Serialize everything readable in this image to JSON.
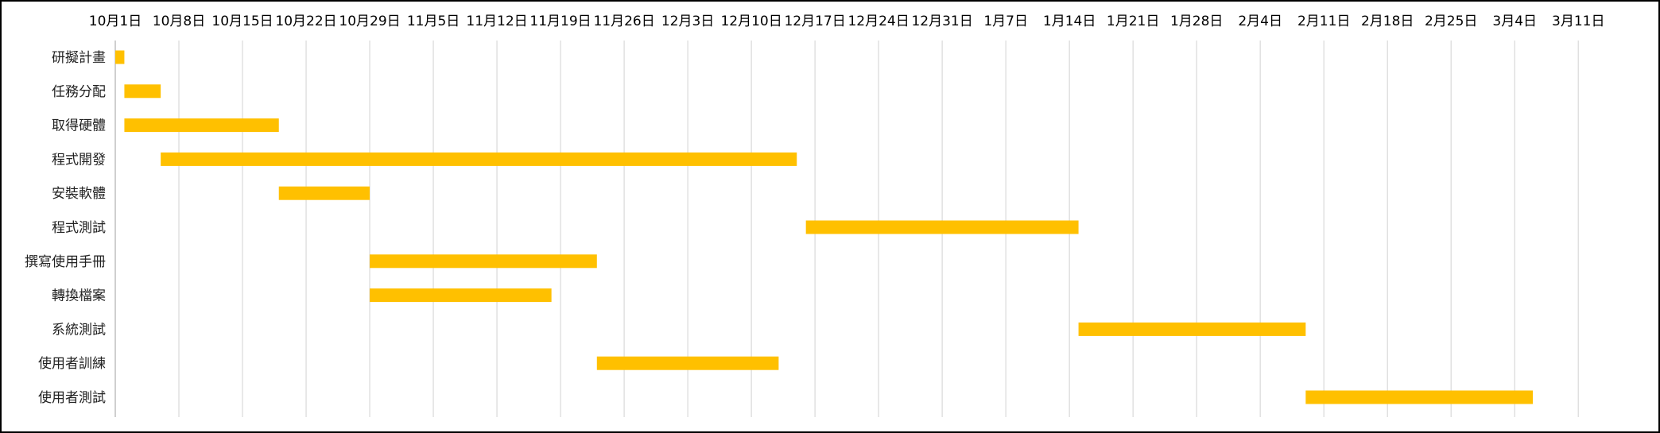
{
  "chart_data": {
    "type": "bar",
    "orientation": "horizontal",
    "title": "",
    "xlabel": "",
    "ylabel": "",
    "grid": true,
    "legend": "none",
    "bar_color": "#FFC000",
    "grid_color": "#D9D9D9",
    "axis_color": "#BFBFBF",
    "x_axis_position": "top",
    "xlim": [
      "2018-10-01",
      "2019-03-18"
    ],
    "x_ticks": [
      {
        "date": "2018-10-01",
        "label": "10月1日"
      },
      {
        "date": "2018-10-08",
        "label": "10月8日"
      },
      {
        "date": "2018-10-15",
        "label": "10月15日"
      },
      {
        "date": "2018-10-22",
        "label": "10月22日"
      },
      {
        "date": "2018-10-29",
        "label": "10月29日"
      },
      {
        "date": "2018-11-05",
        "label": "11月5日"
      },
      {
        "date": "2018-11-12",
        "label": "11月12日"
      },
      {
        "date": "2018-11-19",
        "label": "11月19日"
      },
      {
        "date": "2018-11-26",
        "label": "11月26日"
      },
      {
        "date": "2018-12-03",
        "label": "12月3日"
      },
      {
        "date": "2018-12-10",
        "label": "12月10日"
      },
      {
        "date": "2018-12-17",
        "label": "12月17日"
      },
      {
        "date": "2018-12-24",
        "label": "12月24日"
      },
      {
        "date": "2018-12-31",
        "label": "12月31日"
      },
      {
        "date": "2019-01-07",
        "label": "1月7日"
      },
      {
        "date": "2019-01-14",
        "label": "1月14日"
      },
      {
        "date": "2019-01-21",
        "label": "1月21日"
      },
      {
        "date": "2019-01-28",
        "label": "1月28日"
      },
      {
        "date": "2019-02-04",
        "label": "2月4日"
      },
      {
        "date": "2019-02-11",
        "label": "2月11日"
      },
      {
        "date": "2019-02-18",
        "label": "2月18日"
      },
      {
        "date": "2019-02-25",
        "label": "2月25日"
      },
      {
        "date": "2019-03-04",
        "label": "3月4日"
      },
      {
        "date": "2019-03-11",
        "label": "3月11日"
      }
    ],
    "tasks": [
      {
        "name": "研擬計畫",
        "start": "2018-10-01",
        "end": "2018-10-02"
      },
      {
        "name": "任務分配",
        "start": "2018-10-02",
        "end": "2018-10-06"
      },
      {
        "name": "取得硬體",
        "start": "2018-10-02",
        "end": "2018-10-19"
      },
      {
        "name": "程式開發",
        "start": "2018-10-06",
        "end": "2018-12-15"
      },
      {
        "name": "安裝軟體",
        "start": "2018-10-19",
        "end": "2018-10-29"
      },
      {
        "name": "程式測試",
        "start": "2018-12-16",
        "end": "2019-01-15"
      },
      {
        "name": "撰寫使用手冊",
        "start": "2018-10-29",
        "end": "2018-11-23"
      },
      {
        "name": "轉換檔案",
        "start": "2018-10-29",
        "end": "2018-11-18"
      },
      {
        "name": "系統測試",
        "start": "2019-01-15",
        "end": "2019-02-09"
      },
      {
        "name": "使用者訓練",
        "start": "2018-11-23",
        "end": "2018-12-13"
      },
      {
        "name": "使用者測試",
        "start": "2019-02-09",
        "end": "2019-03-06"
      }
    ]
  }
}
